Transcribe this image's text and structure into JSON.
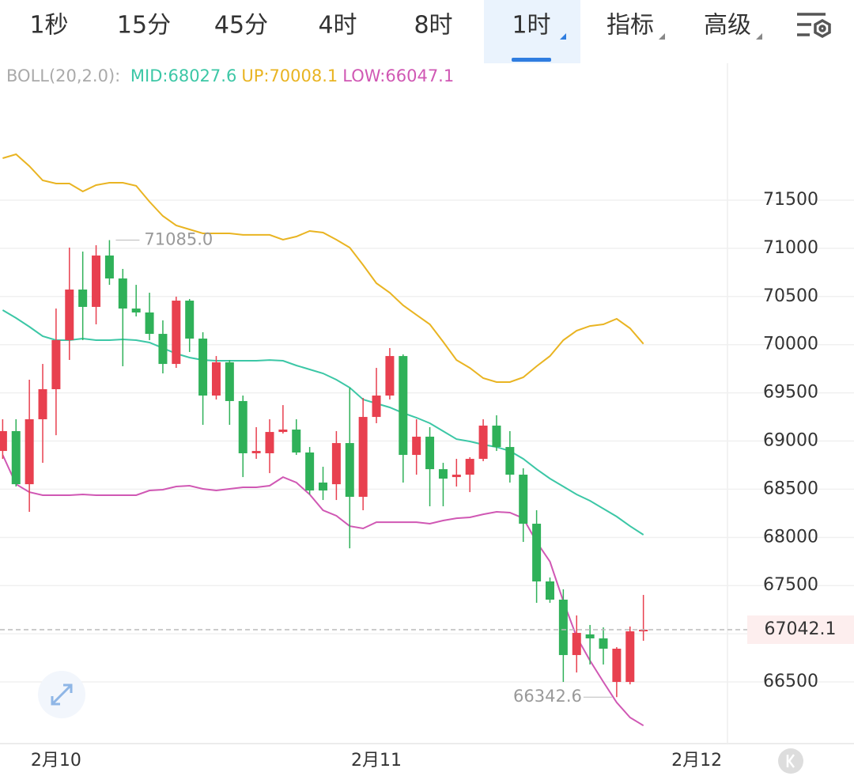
{
  "tabs": [
    {
      "label": "1秒"
    },
    {
      "label": "15分"
    },
    {
      "label": "45分"
    },
    {
      "label": "4时"
    },
    {
      "label": "8时"
    },
    {
      "label": "1时",
      "selected": true,
      "menu": true
    },
    {
      "label": "指标",
      "menu": true
    },
    {
      "label": "高级",
      "menu": true
    }
  ],
  "chart_data": {
    "type": "candlestick",
    "indicator_title": "BOLL(20,2.0):",
    "up_color": "#e8404f",
    "down_color": "#2fb159",
    "x": [
      0,
      1,
      2,
      3,
      4,
      5,
      6,
      7,
      8,
      9,
      10,
      11,
      12,
      13,
      14,
      15,
      16,
      17,
      18,
      19,
      20,
      21,
      22,
      23,
      24,
      25,
      26,
      27,
      28,
      29,
      30,
      31,
      32,
      33,
      34,
      35,
      36,
      37,
      38,
      39,
      40,
      41,
      42,
      43,
      44,
      45,
      46,
      47,
      48
    ],
    "open": [
      68897,
      69103,
      68552,
      69226,
      69538,
      70047,
      70572,
      70392,
      70925,
      70687,
      70375,
      70334,
      70112,
      69800,
      70457,
      70063,
      69472,
      69817,
      69415,
      68873,
      68873,
      69094,
      69119,
      68881,
      68569,
      68552,
      68979,
      68421,
      69250,
      69472,
      69882,
      68856,
      69045,
      68708,
      68626,
      68651,
      68815,
      69160,
      68938,
      68651,
      68142,
      67543,
      67354,
      66779,
      66993,
      66952,
      66500,
      66500,
      67025
    ],
    "high": [
      69226,
      69226,
      69636,
      69800,
      70375,
      71007,
      70966,
      71032,
      71085.0,
      70786,
      70621,
      70539,
      70252,
      70498,
      70474,
      70129,
      69882,
      69841,
      69472,
      69144,
      69226,
      69373,
      69226,
      68938,
      68733,
      69103,
      69554,
      69447,
      69759,
      69965,
      69899,
      69226,
      69144,
      68774,
      68815,
      68832,
      69226,
      69267,
      69103,
      68717,
      68282,
      67584,
      67461,
      67190,
      67091,
      67066,
      66861,
      67075,
      67403
    ],
    "low": [
      68815,
      68528,
      68265,
      68774,
      69061,
      69841,
      70047,
      70211,
      70621,
      69776,
      70293,
      70047,
      69702,
      69759,
      69924,
      69168,
      69431,
      69168,
      68626,
      68815,
      68667,
      69078,
      68856,
      68446,
      68388,
      68388,
      67887,
      68282,
      69185,
      69431,
      68569,
      68651,
      68323,
      68323,
      68528,
      68470,
      68791,
      68897,
      68569,
      67953,
      67321,
      67321,
      66500,
      66598,
      66681,
      66681,
      66342.6,
      66475,
      66927
    ],
    "close": [
      69103,
      68552,
      69226,
      69538,
      70047,
      70572,
      70392,
      70925,
      70687,
      70375,
      70334,
      70112,
      69800,
      70457,
      70063,
      69472,
      69817,
      69415,
      68873,
      68897,
      69094,
      69119,
      68881,
      68487,
      68487,
      68979,
      68421,
      69250,
      69472,
      69882,
      68856,
      69045,
      68708,
      68610,
      68651,
      68815,
      69160,
      68938,
      68651,
      68142,
      67543,
      67354,
      66779,
      67009,
      66952,
      66845,
      66845,
      67025,
      67042.1
    ],
    "series": [
      {
        "label": "MID:68027.6",
        "color": "#3cc7a6",
        "values": [
          70359,
          70277,
          70186,
          70088,
          70047,
          70047,
          70063,
          70047,
          70047,
          70055,
          70047,
          70022,
          69965,
          69907,
          69866,
          69841,
          69833,
          69833,
          69833,
          69833,
          69841,
          69833,
          69784,
          69743,
          69702,
          69636,
          69554,
          69431,
          69390,
          69349,
          69291,
          69242,
          69185,
          69103,
          69020,
          68996,
          68963,
          68938,
          68897,
          68815,
          68708,
          68610,
          68528,
          68446,
          68380,
          68298,
          68216,
          68117,
          68027.6
        ]
      },
      {
        "label": "UP:70008.1",
        "color": "#e9b422",
        "values": [
          71935,
          71976,
          71853,
          71705,
          71672,
          71672,
          71590,
          71656,
          71680,
          71680,
          71648,
          71483,
          71336,
          71237,
          71196,
          71155,
          71155,
          71155,
          71139,
          71139,
          71139,
          71089,
          71122,
          71180,
          71163,
          71089,
          71007,
          70827,
          70638,
          70539,
          70408,
          70309,
          70211,
          70030,
          69841,
          69759,
          69653,
          69612,
          69612,
          69661,
          69776,
          69882,
          70047,
          70145,
          70194,
          70211,
          70268,
          70170,
          70008.1
        ]
      },
      {
        "label": "LOW:66047.1",
        "color": "#d058b4",
        "values": [
          68856,
          68552,
          68470,
          68438,
          68438,
          68438,
          68446,
          68438,
          68438,
          68438,
          68438,
          68487,
          68495,
          68528,
          68536,
          68503,
          68487,
          68503,
          68520,
          68520,
          68536,
          68626,
          68569,
          68446,
          68282,
          68224,
          68117,
          68093,
          68158,
          68158,
          68158,
          68158,
          68142,
          68175,
          68199,
          68208,
          68240,
          68265,
          68257,
          68199,
          67953,
          67748,
          67337,
          66968,
          66722,
          66500,
          66287,
          66131,
          66047.1
        ]
      }
    ],
    "max_label": "71085.0",
    "min_label": "66342.6",
    "last_label": "67042.1",
    "xlim": [
      -0.2,
      54.3
    ],
    "ylim": [
      65860,
      72920
    ],
    "yticks": [
      66500,
      67000,
      67500,
      68000,
      68500,
      69000,
      69500,
      70000,
      70500,
      71000,
      71500
    ],
    "hidden_tick_labels": [
      67000
    ],
    "xticks": [
      {
        "value": 4,
        "label": "2月10"
      },
      {
        "value": 28,
        "label": "2月11"
      },
      {
        "value": 52,
        "label": "2月12"
      }
    ],
    "grid": true
  }
}
